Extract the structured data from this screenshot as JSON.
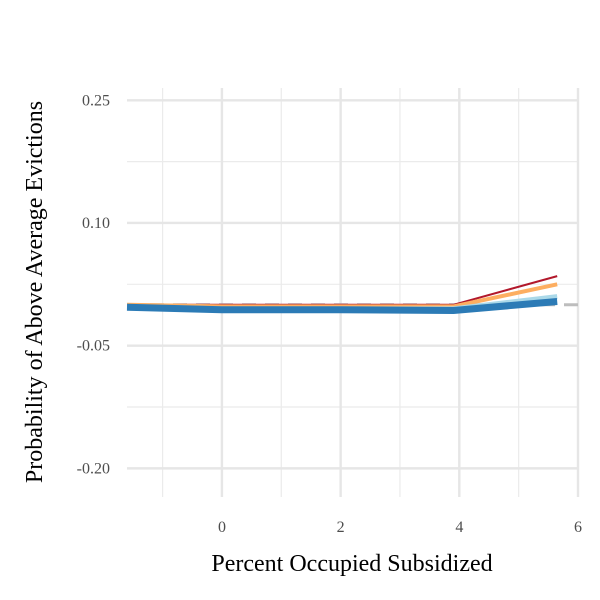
{
  "chart_data": {
    "type": "line",
    "xlabel": "Percent Occupied Subsidized",
    "ylabel": "Probability of Above Average Evictions",
    "xlim": [
      -1.6,
      6
    ],
    "ylim": [
      -0.235,
      0.265
    ],
    "x_ticks": [
      0,
      2,
      4,
      6
    ],
    "x_tick_labels": [
      "0",
      "2",
      "4",
      "6"
    ],
    "y_ticks": [
      0.25,
      0.1,
      -0.05,
      -0.2
    ],
    "y_tick_labels": [
      "0.25",
      "0.10",
      "-0.05",
      "-0.20"
    ],
    "grid": true,
    "reference_line": {
      "y": 0.0,
      "color": "#bdbdbd",
      "style": "dashed"
    },
    "series": [
      {
        "color": "#b2182b",
        "width": 2,
        "x": [
          -1.6,
          0,
          2,
          3.9,
          5.65
        ],
        "y": [
          0.0,
          0.0,
          0.0,
          0.0,
          0.035
        ]
      },
      {
        "color": "#fdae61",
        "width": 4,
        "x": [
          -1.6,
          0,
          2,
          3.9,
          5.65
        ],
        "y": [
          0.0,
          -0.002,
          -0.002,
          -0.002,
          0.025
        ]
      },
      {
        "color": "#abd9e9",
        "width": 5,
        "x": [
          -1.6,
          0,
          2,
          3.9,
          5.65
        ],
        "y": [
          -0.002,
          -0.005,
          -0.005,
          -0.005,
          0.01
        ]
      },
      {
        "color": "#2c7bb6",
        "width": 7,
        "x": [
          -1.6,
          0,
          2,
          3.9,
          5.65
        ],
        "y": [
          -0.003,
          -0.006,
          -0.006,
          -0.007,
          0.004
        ]
      }
    ]
  }
}
